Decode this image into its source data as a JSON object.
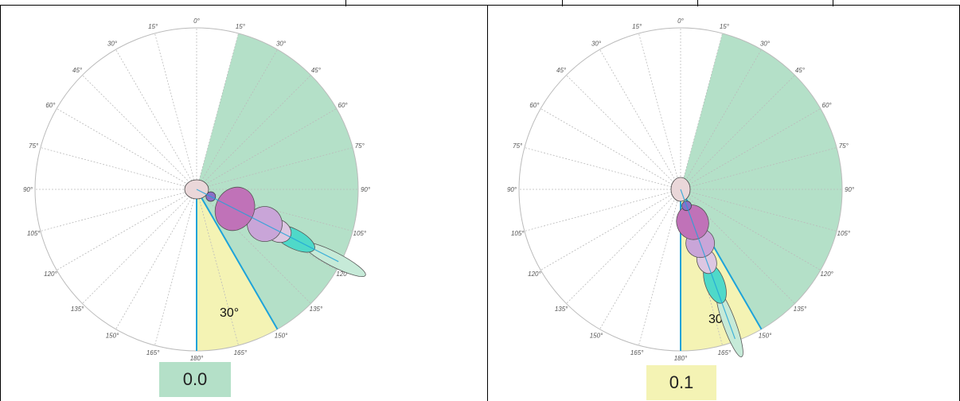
{
  "colors": {
    "green_sector": "#b4e0c8",
    "yellow_sector": "#f4f3b4",
    "blue_line": "#1ea3d9",
    "head": "#ead7d9",
    "small_segment": "#8a6fc7",
    "large_segment": "#c072b8",
    "mid_segment": "#c9a5d8",
    "light_segment": "#dcc7e2",
    "teal_segment": "#4fd9c9",
    "pale_teal_segment": "#c6ead8"
  },
  "angle_ticks": [
    "0°",
    "15°",
    "30°",
    "45°",
    "60°",
    "75°",
    "90°",
    "105°",
    "120°",
    "135°",
    "150°",
    "165°",
    "180°"
  ],
  "panels": [
    {
      "angle_label": "30°",
      "value": "0.0",
      "value_color": "#b4e0c8",
      "body_direction_deg": 117,
      "sector_from_deg": 15,
      "sector_to_deg": 150
    },
    {
      "angle_label": "30°",
      "value": "0.1",
      "value_color": "#f4f3b4",
      "body_direction_deg": 160,
      "sector_from_deg": 15,
      "sector_to_deg": 150
    }
  ]
}
